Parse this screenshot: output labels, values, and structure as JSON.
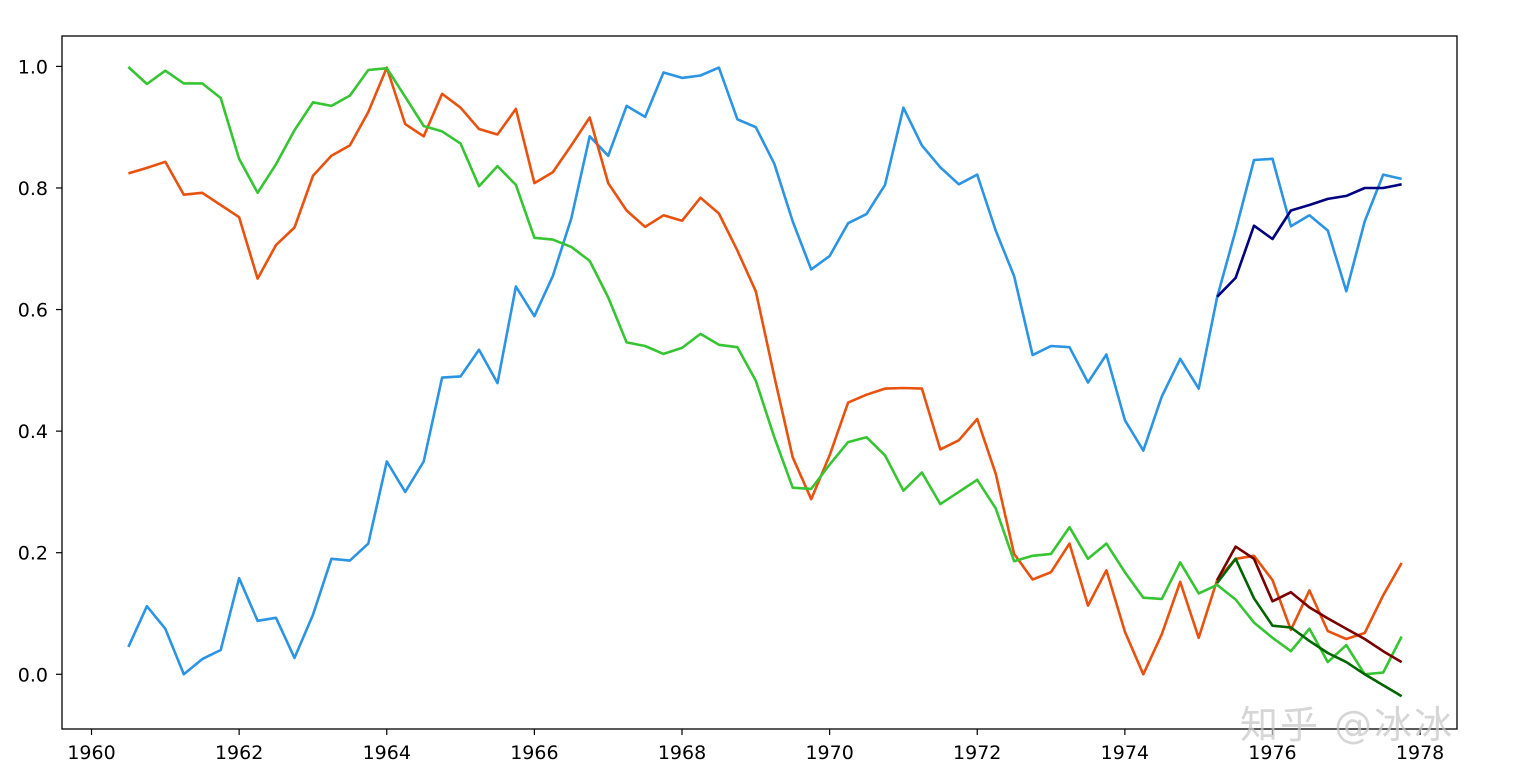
{
  "watermark": "知乎 @冰冰",
  "chart_data": {
    "type": "line",
    "title": "",
    "xlabel": "",
    "ylabel": "",
    "xlim": [
      1959.6,
      1978.5
    ],
    "ylim": [
      -0.09,
      1.05
    ],
    "xticks": [
      1960,
      1962,
      1964,
      1966,
      1968,
      1970,
      1972,
      1974,
      1976,
      1978
    ],
    "yticks": [
      0.0,
      0.2,
      0.4,
      0.6,
      0.8,
      1.0
    ],
    "grid": false,
    "legend": "none",
    "x": [
      1960.5,
      1960.75,
      1961,
      1961.25,
      1961.5,
      1961.75,
      1962,
      1962.25,
      1962.5,
      1962.75,
      1963,
      1963.25,
      1963.5,
      1963.75,
      1964,
      1964.25,
      1964.5,
      1964.75,
      1965,
      1965.25,
      1965.5,
      1965.75,
      1966,
      1966.25,
      1966.5,
      1966.75,
      1967,
      1967.25,
      1967.5,
      1967.75,
      1968,
      1968.25,
      1968.5,
      1968.75,
      1969,
      1969.25,
      1969.5,
      1969.75,
      1970,
      1970.25,
      1970.5,
      1970.75,
      1971,
      1971.25,
      1971.5,
      1971.75,
      1972,
      1972.25,
      1972.5,
      1972.75,
      1973,
      1973.25,
      1973.5,
      1973.75,
      1974,
      1974.25,
      1974.5,
      1974.75,
      1975,
      1975.25,
      1975.5,
      1975.75,
      1976,
      1976.25,
      1976.5,
      1976.75,
      1977,
      1977.25,
      1977.5,
      1977.75
    ],
    "series": [
      {
        "color": "#2b94e4",
        "values": [
          0.045,
          0.112,
          0.075,
          0.0,
          0.025,
          0.04,
          0.158,
          0.088,
          0.093,
          0.027,
          0.098,
          0.19,
          0.187,
          0.215,
          0.35,
          0.3,
          0.35,
          0.488,
          0.49,
          0.534,
          0.479,
          0.638,
          0.589,
          0.655,
          0.75,
          0.885,
          0.853,
          0.935,
          0.917,
          0.99,
          0.981,
          0.985,
          0.998,
          0.913,
          0.9,
          0.84,
          0.745,
          0.666,
          0.688,
          0.742,
          0.757,
          0.805,
          0.932,
          0.87,
          0.834,
          0.806,
          0.822,
          0.73,
          0.655,
          0.525,
          0.54,
          0.538,
          0.48,
          0.526,
          0.418,
          0.368,
          0.457,
          0.519,
          0.47,
          0.62,
          0.73,
          0.846,
          0.848,
          0.737,
          0.755,
          0.73,
          0.63,
          0.745,
          0.822,
          0.815
        ]
      },
      {
        "color": "#e8520e",
        "values": [
          0.824,
          0.833,
          0.843,
          0.789,
          0.792,
          0.772,
          0.752,
          0.651,
          0.706,
          0.735,
          0.82,
          0.853,
          0.87,
          0.925,
          0.998,
          0.905,
          0.885,
          0.955,
          0.932,
          0.897,
          0.888,
          0.93,
          0.808,
          0.826,
          0.87,
          0.916,
          0.808,
          0.763,
          0.736,
          0.755,
          0.746,
          0.784,
          0.758,
          0.697,
          0.63,
          0.49,
          0.357,
          0.288,
          0.36,
          0.447,
          0.46,
          0.47,
          0.471,
          0.47,
          0.37,
          0.385,
          0.42,
          0.33,
          0.198,
          0.156,
          0.168,
          0.215,
          0.113,
          0.171,
          0.07,
          0.0,
          0.066,
          0.152,
          0.06,
          0.155,
          0.19,
          0.195,
          0.155,
          0.073,
          0.138,
          0.071,
          0.058,
          0.068,
          0.13,
          0.183
        ]
      },
      {
        "color": "#36c532",
        "values": [
          0.999,
          0.971,
          0.993,
          0.972,
          0.972,
          0.948,
          0.848,
          0.792,
          0.839,
          0.895,
          0.941,
          0.935,
          0.952,
          0.994,
          0.997,
          0.95,
          0.902,
          0.893,
          0.873,
          0.803,
          0.836,
          0.805,
          0.718,
          0.715,
          0.703,
          0.68,
          0.62,
          0.546,
          0.54,
          0.527,
          0.537,
          0.56,
          0.542,
          0.538,
          0.483,
          0.39,
          0.307,
          0.305,
          0.345,
          0.382,
          0.39,
          0.36,
          0.302,
          0.332,
          0.28,
          0.3,
          0.32,
          0.273,
          0.186,
          0.195,
          0.198,
          0.242,
          0.19,
          0.215,
          0.168,
          0.126,
          0.124,
          0.184,
          0.133,
          0.147,
          0.123,
          0.085,
          0.06,
          0.038,
          0.075,
          0.02,
          0.048,
          0.0,
          0.003,
          0.062
        ]
      }
    ],
    "forecast_series": [
      {
        "color": "#000080",
        "x": [
          1975.25,
          1975.5,
          1975.75,
          1976,
          1976.25,
          1976.5,
          1976.75,
          1977,
          1977.25,
          1977.5,
          1977.75
        ],
        "values": [
          0.621,
          0.652,
          0.738,
          0.716,
          0.763,
          0.772,
          0.782,
          0.787,
          0.8,
          0.8,
          0.806
        ]
      },
      {
        "color": "#7a0000",
        "x": [
          1975.25,
          1975.5,
          1975.75,
          1976,
          1976.25,
          1976.5,
          1976.75,
          1977,
          1977.25,
          1977.5,
          1977.75
        ],
        "values": [
          0.155,
          0.21,
          0.19,
          0.12,
          0.135,
          0.11,
          0.092,
          0.075,
          0.058,
          0.038,
          0.02
        ]
      },
      {
        "color": "#006400",
        "x": [
          1975.25,
          1975.5,
          1975.75,
          1976,
          1976.25,
          1976.5,
          1976.75,
          1977,
          1977.25,
          1977.5,
          1977.75
        ],
        "values": [
          0.15,
          0.19,
          0.125,
          0.08,
          0.077,
          0.055,
          0.035,
          0.02,
          0.0,
          -0.018,
          -0.036
        ]
      }
    ]
  }
}
